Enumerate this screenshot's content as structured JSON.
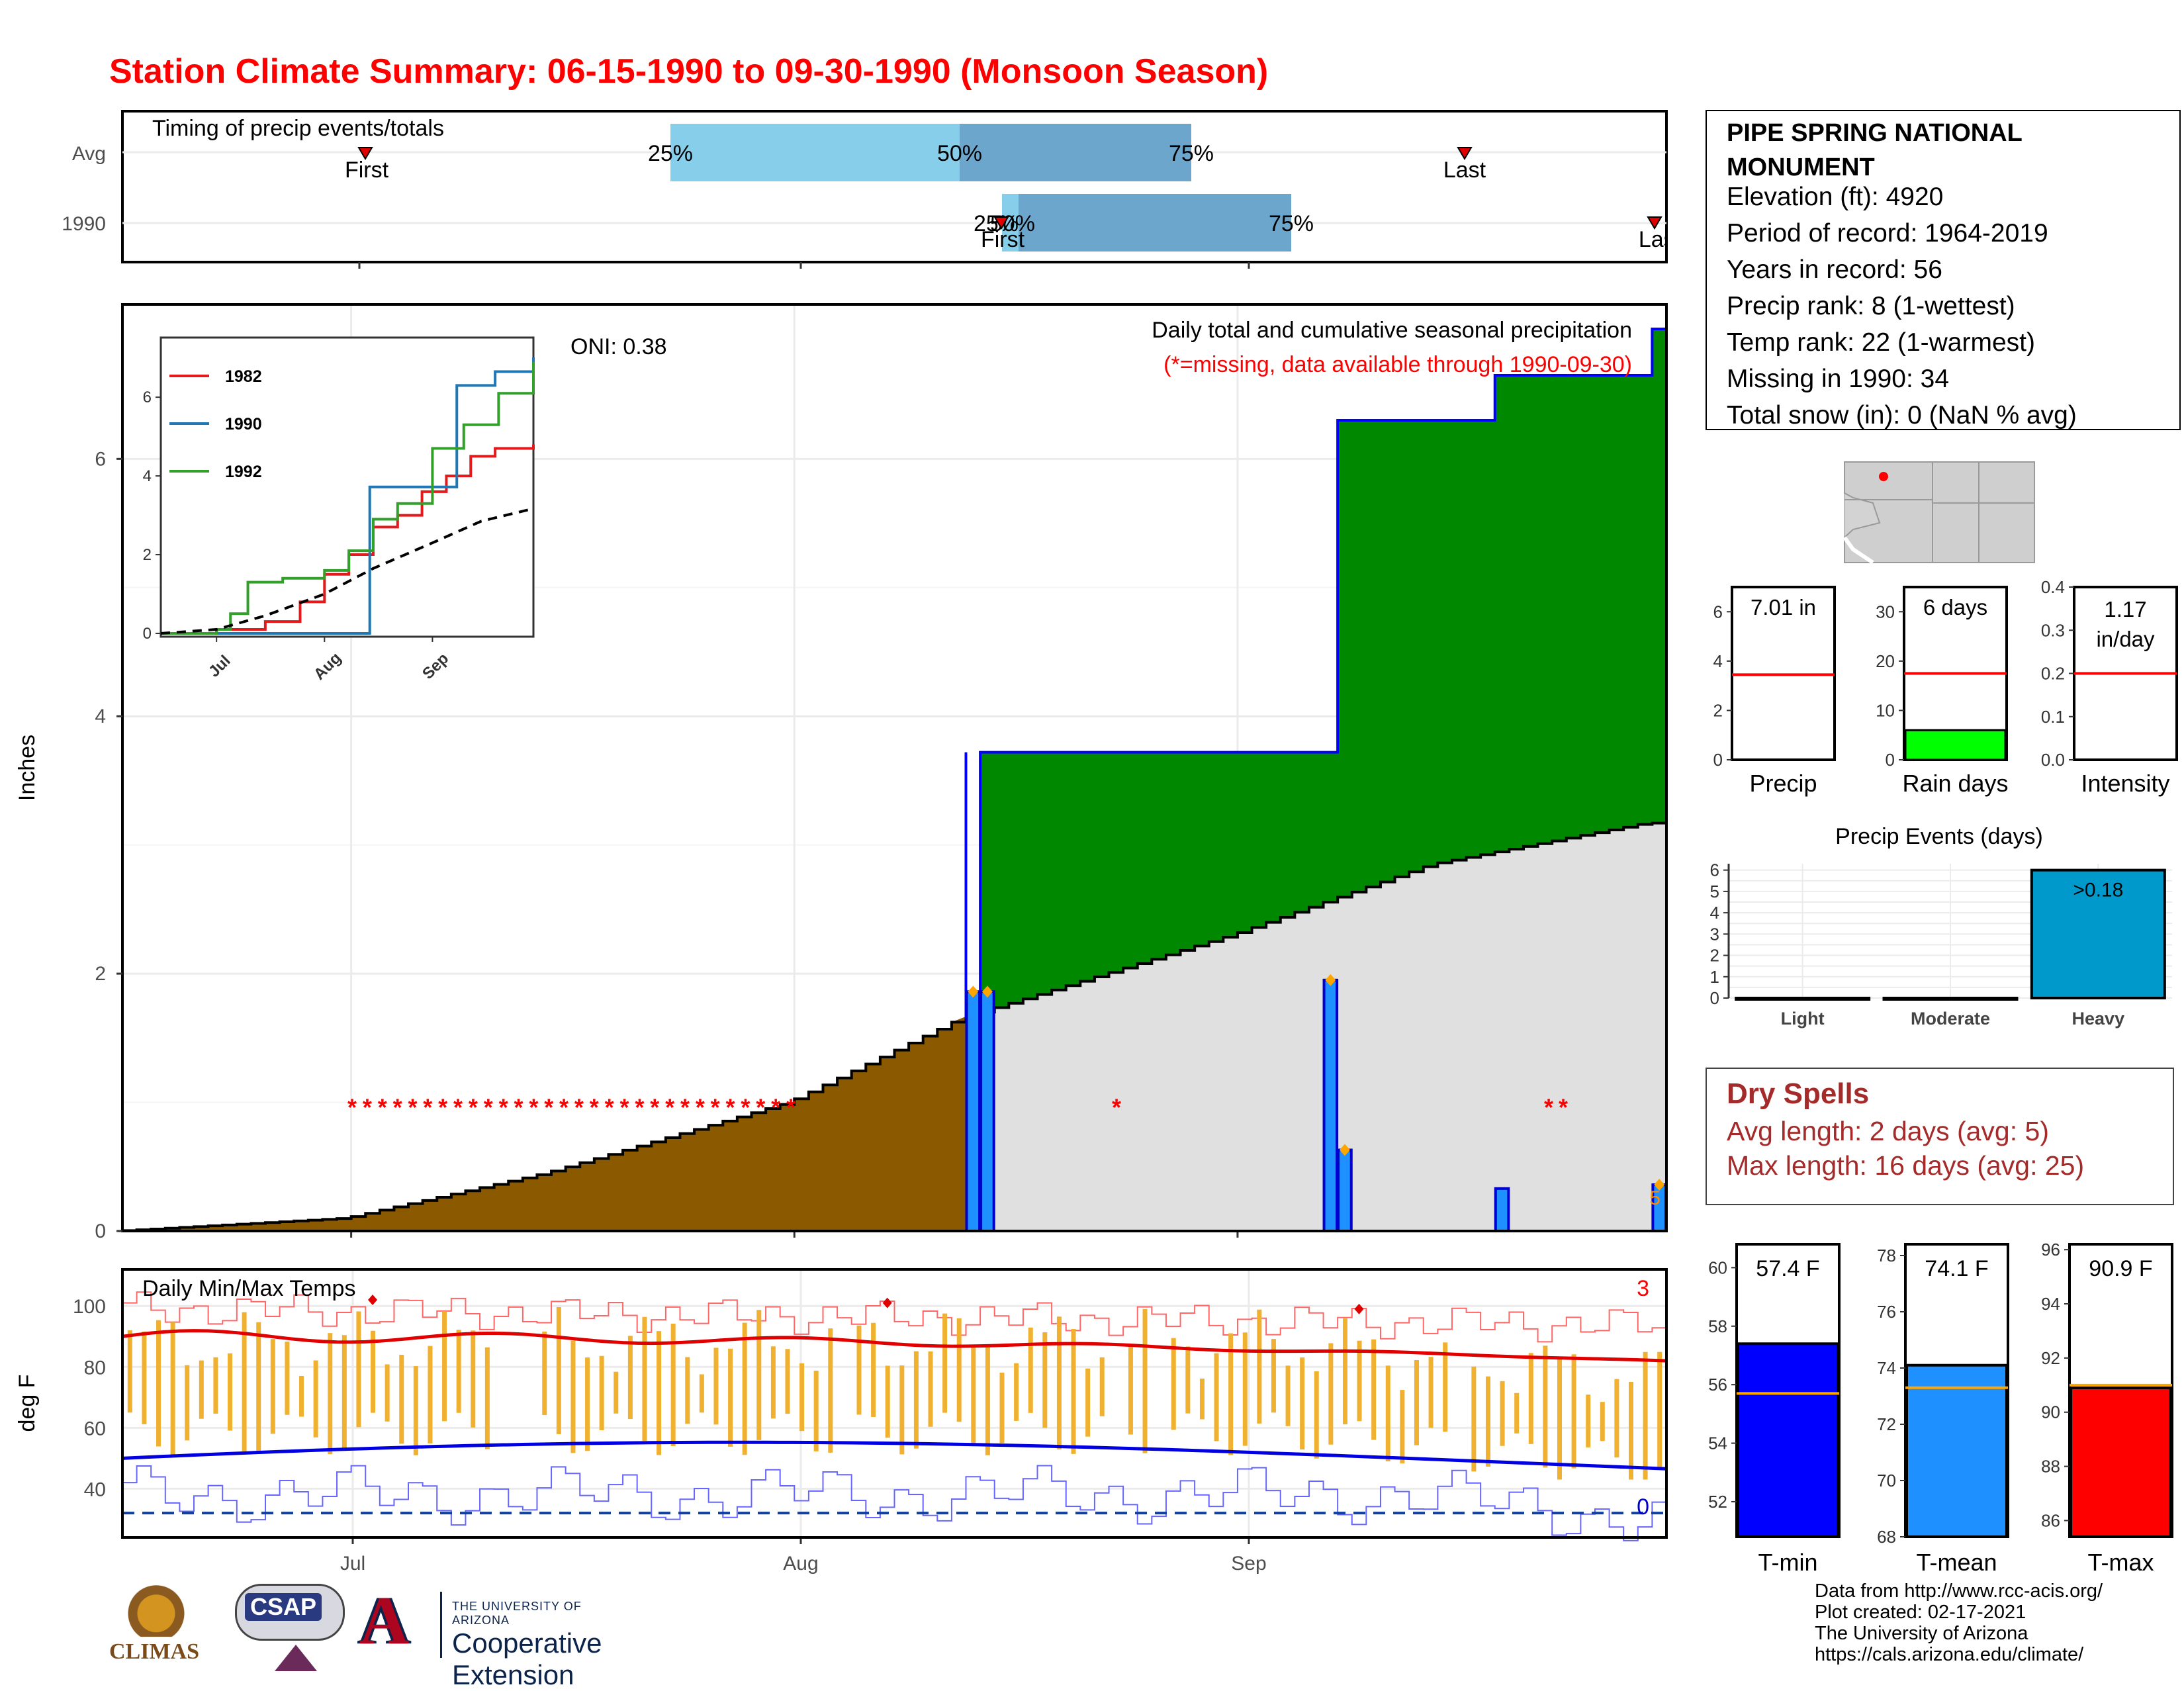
{
  "title": "Station Climate Summary: 06-15-1990 to 09-30-1990 (Monsoon Season)",
  "timing_panel": {
    "label": "Timing of precip events/totals",
    "rows": [
      "Avg",
      "1990"
    ],
    "avg": {
      "first": "First",
      "last": "Last",
      "p25": "25%",
      "p50": "50%",
      "p75": "75%"
    },
    "y1990": {
      "first": "First",
      "last": "Last",
      "p25": "25%",
      "p50": "50%",
      "p75": "75%"
    }
  },
  "main_panel": {
    "ylabel": "Inches",
    "oni": "ONI: 0.38",
    "caption": "Daily total and cumulative seasonal precipitation",
    "missing_note": "(*=missing, data available through 1990-09-30)",
    "yticks": [
      "0",
      "2",
      "4",
      "6"
    ]
  },
  "inset": {
    "legend": [
      "1982",
      "1990",
      "1992"
    ],
    "yticks": [
      "0",
      "2",
      "4",
      "6"
    ],
    "xticks": [
      "Jul",
      "Aug",
      "Sep"
    ]
  },
  "temp_panel": {
    "label": "Daily Min/Max Temps",
    "ylabel": "deg F",
    "yticks": [
      "40",
      "60",
      "80",
      "100"
    ],
    "count_high": "3",
    "count_low": "0",
    "xticks": [
      "Jul",
      "Aug",
      "Sep"
    ]
  },
  "station": {
    "name_line1": "PIPE SPRING NATIONAL",
    "name_line2": "MONUMENT",
    "elevation": "Elevation (ft): 4920",
    "period": "Period of record: 1964-2019",
    "years": "Years in record: 56",
    "precip_rank": "Precip rank: 8 (1-wettest)",
    "temp_rank": "Temp rank: 22 (1-warmest)",
    "missing": "Missing in 1990: 34",
    "snow": "Total snow (in): 0 (NaN % avg)"
  },
  "mini_bars": [
    {
      "label": "Precip",
      "value_text": "7.01 in",
      "value": 7.01,
      "avg": 3.45,
      "ymax": 7.0,
      "yticks": [
        "0",
        "2",
        "4",
        "6"
      ],
      "tickvals": [
        0,
        2,
        4,
        6
      ],
      "color": "#00cc00"
    },
    {
      "label": "Rain days",
      "value_text": "6 days",
      "value": 6,
      "avg": 17.5,
      "ymax": 35,
      "yticks": [
        "0",
        "10",
        "20",
        "30"
      ],
      "tickvals": [
        0,
        10,
        20,
        30
      ],
      "color": "#00ff00"
    },
    {
      "label": "Intensity",
      "value_text_1": "1.17",
      "value_text_2": "in/day",
      "value": 1.17,
      "avg": 0.2,
      "ymax": 0.4,
      "yticks": [
        "0.0",
        "0.1",
        "0.2",
        "0.3",
        "0.4"
      ],
      "tickvals": [
        0,
        0.1,
        0.2,
        0.3,
        0.4
      ],
      "color": "#00ff00"
    }
  ],
  "events_chart": {
    "title": "Precip Events (days)",
    "categories": [
      "Light",
      "Moderate",
      "Heavy"
    ],
    "values": [
      0,
      0,
      6
    ],
    "bar_label": ">0.18",
    "yticks": [
      "0",
      "1",
      "2",
      "3",
      "4",
      "5",
      "6"
    ]
  },
  "dry_spells": {
    "title": "Dry Spells",
    "avg": "Avg length: 2 days (avg: 5)",
    "max": "Max length: 16 days (avg: 25)"
  },
  "temp_bars": [
    {
      "label": "T-min",
      "value_text": "57.4 F",
      "value": 57.4,
      "avg": 55.7,
      "ymin": 50.8,
      "ymax": 60.8,
      "yticks": [
        "52",
        "54",
        "56",
        "58",
        "60"
      ],
      "tickvals": [
        52,
        54,
        56,
        58,
        60
      ],
      "color": "#0000ff"
    },
    {
      "label": "T-mean",
      "value_text": "74.1 F",
      "value": 74.1,
      "avg": 73.3,
      "ymin": 68,
      "ymax": 78.4,
      "yticks": [
        "68",
        "70",
        "72",
        "74",
        "76",
        "78"
      ],
      "tickvals": [
        68,
        70,
        72,
        74,
        76,
        78
      ],
      "color": "#1e90ff"
    },
    {
      "label": "T-max",
      "value_text": "90.9 F",
      "value": 90.9,
      "avg": 91.0,
      "ymin": 85.4,
      "ymax": 96.2,
      "yticks": [
        "86",
        "88",
        "90",
        "92",
        "94",
        "96"
      ],
      "tickvals": [
        86,
        88,
        90,
        92,
        94,
        96
      ],
      "color": "#ff0000"
    }
  ],
  "credits": {
    "line1": "Data from http://www.rcc-acis.org/",
    "line2": "Plot created: 02-17-2021",
    "line3": "The University of Arizona",
    "line4": "https://cals.arizona.edu/climate/"
  },
  "logos": {
    "climas": "CLIMAS",
    "csap": "CSAP",
    "ua_line1": "THE UNIVERSITY OF ARIZONA",
    "ua_line2": "Cooperative Extension"
  },
  "chart_data": [
    {
      "type": "area",
      "title": "Daily total and cumulative seasonal precipitation",
      "ylabel": "Inches",
      "xlim": [
        "1990-06-15",
        "1990-09-30"
      ],
      "ylim": [
        0,
        7.2
      ],
      "x_ticks": [
        "Jul",
        "Aug",
        "Sep"
      ],
      "series": [
        {
          "name": "1990",
          "x": [
            "1990-06-15",
            "1990-08-13",
            "1990-08-14",
            "1990-09-07",
            "1990-09-08",
            "1990-09-19",
            "1990-09-30"
          ],
          "values": [
            0,
            0,
            3.72,
            3.72,
            6.3,
            6.65,
            7.01
          ]
        }
      ],
      "daily_events_x": [
        "1990-08-13",
        "1990-08-14",
        "1990-09-07",
        "1990-09-08",
        "1990-09-19",
        "1990-09-30"
      ],
      "daily_events_values": [
        1.86,
        1.86,
        1.95,
        0.63,
        0.33,
        0.36
      ],
      "average_x": [
        "1990-06-15",
        "1990-07-01",
        "1990-07-15",
        "1990-08-01",
        "1990-08-13",
        "1990-09-01",
        "1990-09-15",
        "1990-09-30"
      ],
      "average_values": [
        0,
        0.1,
        0.45,
        1.0,
        1.65,
        2.3,
        2.85,
        3.17
      ]
    },
    {
      "type": "line",
      "title": "Inset cumulative precipitation",
      "ylim": [
        0,
        7
      ],
      "x_ticks": [
        "Jul",
        "Aug",
        "Sep"
      ],
      "series": [
        {
          "name": "1982",
          "x": [
            "06-15",
            "07-01",
            "07-15",
            "07-25",
            "08-01",
            "08-08",
            "08-15",
            "08-22",
            "08-29",
            "09-05",
            "09-12",
            "09-19",
            "09-30"
          ],
          "values": [
            0,
            0.1,
            0.3,
            0.8,
            1.5,
            2.0,
            2.7,
            3.0,
            3.6,
            4.0,
            4.5,
            4.7,
            4.8
          ]
        },
        {
          "name": "1990",
          "x": [
            "06-15",
            "08-13",
            "08-14",
            "09-07",
            "09-08",
            "09-19",
            "09-30"
          ],
          "values": [
            0,
            0,
            3.72,
            3.72,
            6.3,
            6.65,
            7.01
          ]
        },
        {
          "name": "1992",
          "x": [
            "06-15",
            "07-01",
            "07-05",
            "07-10",
            "07-20",
            "08-01",
            "08-08",
            "08-15",
            "08-22",
            "09-01",
            "09-10",
            "09-20",
            "09-30"
          ],
          "values": [
            0,
            0.1,
            0.5,
            1.3,
            1.4,
            1.6,
            2.1,
            2.9,
            3.3,
            4.7,
            5.3,
            6.1,
            6.9
          ]
        },
        {
          "name": "Average",
          "x": [
            "06-15",
            "07-01",
            "07-15",
            "08-01",
            "08-15",
            "09-01",
            "09-15",
            "09-30"
          ],
          "values": [
            0,
            0.1,
            0.45,
            1.0,
            1.65,
            2.3,
            2.85,
            3.17
          ]
        }
      ]
    },
    {
      "type": "bar",
      "title": "Daily Min/Max Temps",
      "ylabel": "deg F",
      "ylim": [
        24,
        112
      ],
      "x_ticks": [
        "Jul",
        "Aug",
        "Sep"
      ],
      "avg_max_start": 90,
      "avg_max_end": 82,
      "avg_min_start": 50,
      "avg_min_end": 45
    }
  ]
}
